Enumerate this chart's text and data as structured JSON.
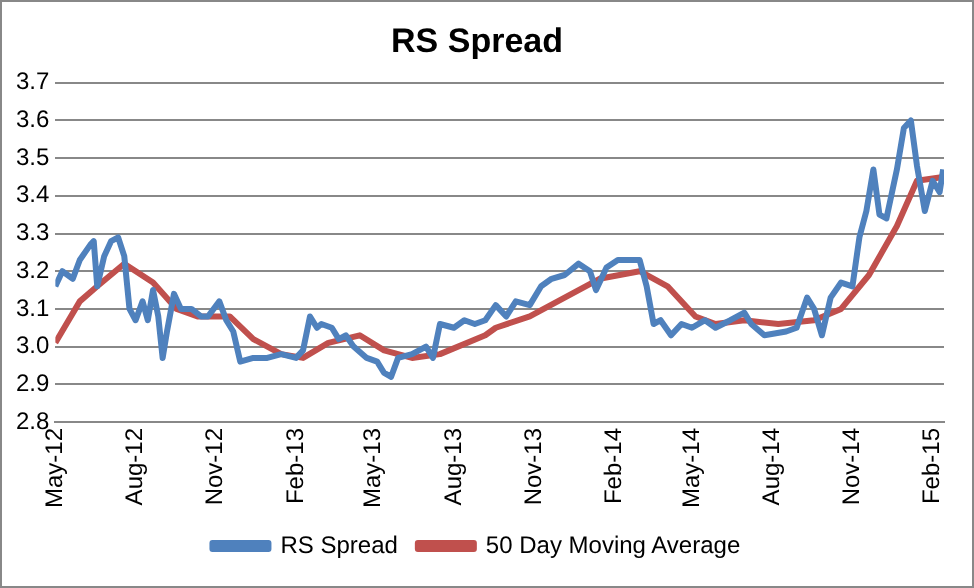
{
  "chart_data": {
    "type": "line",
    "title": "RS Spread",
    "legend": "bottom",
    "grid": "y",
    "marker": "none",
    "line_style": "solid",
    "xlim": [
      "2012-05-01",
      "2015-02-14"
    ],
    "xticks": [
      {
        "value": "2012-05-01",
        "label": "May-12"
      },
      {
        "value": "2012-08-01",
        "label": "Aug-12"
      },
      {
        "value": "2012-11-01",
        "label": "Nov-12"
      },
      {
        "value": "2013-02-01",
        "label": "Feb-13"
      },
      {
        "value": "2013-05-01",
        "label": "May-13"
      },
      {
        "value": "2013-08-01",
        "label": "Aug-13"
      },
      {
        "value": "2013-11-01",
        "label": "Nov-13"
      },
      {
        "value": "2014-02-01",
        "label": "Feb-14"
      },
      {
        "value": "2014-05-01",
        "label": "May-14"
      },
      {
        "value": "2014-08-01",
        "label": "Aug-14"
      },
      {
        "value": "2014-11-01",
        "label": "Nov-14"
      },
      {
        "value": "2015-02-01",
        "label": "Feb-15"
      }
    ],
    "ylim": [
      2.8,
      3.7
    ],
    "yticks": [
      {
        "value": 2.8,
        "label": "2.8"
      },
      {
        "value": 2.9,
        "label": "2.9"
      },
      {
        "value": 3.0,
        "label": "3.0"
      },
      {
        "value": 3.1,
        "label": "3.1"
      },
      {
        "value": 3.2,
        "label": "3.2"
      },
      {
        "value": 3.3,
        "label": "3.3"
      },
      {
        "value": 3.4,
        "label": "3.4"
      },
      {
        "value": 3.5,
        "label": "3.5"
      },
      {
        "value": 3.6,
        "label": "3.6"
      },
      {
        "value": 3.7,
        "label": "3.7"
      }
    ],
    "series": [
      {
        "name": "RS Spread",
        "color": "#4f81bd",
        "x": [
          "2012-05-01",
          "2012-05-09",
          "2012-05-21",
          "2012-05-29",
          "2012-06-10",
          "2012-06-14",
          "2012-06-18",
          "2012-06-26",
          "2012-07-04",
          "2012-07-12",
          "2012-07-19",
          "2012-07-25",
          "2012-08-01",
          "2012-08-09",
          "2012-08-15",
          "2012-08-21",
          "2012-08-27",
          "2012-09-01",
          "2012-09-06",
          "2012-09-14",
          "2012-09-22",
          "2012-10-04",
          "2012-10-15",
          "2012-10-23",
          "2012-11-05",
          "2012-11-13",
          "2012-11-21",
          "2012-11-29",
          "2012-12-14",
          "2012-12-30",
          "2013-01-15",
          "2013-02-01",
          "2013-02-09",
          "2013-02-17",
          "2013-02-25",
          "2013-03-02",
          "2013-03-14",
          "2013-03-22",
          "2013-03-30",
          "2013-04-08",
          "2013-04-23",
          "2013-05-05",
          "2013-05-13",
          "2013-05-21",
          "2013-05-29",
          "2013-06-14",
          "2013-06-30",
          "2013-07-08",
          "2013-07-16",
          "2013-08-01",
          "2013-08-13",
          "2013-08-25",
          "2013-09-06",
          "2013-09-18",
          "2013-09-30",
          "2013-10-11",
          "2013-10-27",
          "2013-11-09",
          "2013-11-21",
          "2013-12-06",
          "2013-12-22",
          "2014-01-04",
          "2014-01-11",
          "2014-01-23",
          "2014-02-05",
          "2014-02-20",
          "2014-03-02",
          "2014-03-10",
          "2014-03-18",
          "2014-03-26",
          "2014-04-07",
          "2014-04-19",
          "2014-05-01",
          "2014-05-16",
          "2014-05-28",
          "2014-06-14",
          "2014-06-30",
          "2014-07-08",
          "2014-07-23",
          "2014-08-17",
          "2014-08-29",
          "2014-09-10",
          "2014-09-18",
          "2014-09-27",
          "2014-10-07",
          "2014-10-19",
          "2014-11-01",
          "2014-11-09",
          "2014-11-17",
          "2014-11-25",
          "2014-12-02",
          "2014-12-10",
          "2014-12-22",
          "2014-12-30",
          "2015-01-07",
          "2015-01-14",
          "2015-01-23",
          "2015-02-01",
          "2015-02-09",
          "2015-02-13"
        ],
        "values": [
          3.16,
          3.2,
          3.18,
          3.23,
          3.27,
          3.28,
          3.16,
          3.24,
          3.28,
          3.29,
          3.24,
          3.1,
          3.07,
          3.12,
          3.07,
          3.15,
          3.08,
          2.97,
          3.04,
          3.14,
          3.1,
          3.1,
          3.08,
          3.08,
          3.12,
          3.07,
          3.04,
          2.96,
          2.97,
          2.97,
          2.98,
          2.97,
          2.99,
          3.08,
          3.05,
          3.06,
          3.05,
          3.02,
          3.03,
          3.0,
          2.97,
          2.96,
          2.93,
          2.92,
          2.97,
          2.98,
          3.0,
          2.97,
          3.06,
          3.05,
          3.07,
          3.06,
          3.07,
          3.11,
          3.08,
          3.12,
          3.11,
          3.16,
          3.18,
          3.19,
          3.22,
          3.2,
          3.15,
          3.21,
          3.23,
          3.23,
          3.23,
          3.16,
          3.06,
          3.07,
          3.03,
          3.06,
          3.05,
          3.07,
          3.05,
          3.07,
          3.09,
          3.06,
          3.03,
          3.04,
          3.05,
          3.13,
          3.1,
          3.03,
          3.13,
          3.17,
          3.16,
          3.29,
          3.36,
          3.47,
          3.35,
          3.34,
          3.47,
          3.58,
          3.6,
          3.48,
          3.36,
          3.44,
          3.41,
          3.47
        ]
      },
      {
        "name": "50 Day Moving Average",
        "color": "#c0504d",
        "x": [
          "2012-05-01",
          "2012-05-29",
          "2012-06-18",
          "2012-07-19",
          "2012-08-21",
          "2012-09-17",
          "2012-10-11",
          "2012-11-17",
          "2012-12-14",
          "2013-01-15",
          "2013-02-09",
          "2013-03-10",
          "2013-04-15",
          "2013-05-13",
          "2013-06-14",
          "2013-07-16",
          "2013-09-06",
          "2013-09-18",
          "2013-10-27",
          "2013-11-28",
          "2014-01-15",
          "2014-03-02",
          "2014-04-03",
          "2014-05-05",
          "2014-05-28",
          "2014-06-30",
          "2014-08-08",
          "2014-09-18",
          "2014-10-19",
          "2014-11-20",
          "2014-12-22",
          "2015-01-14",
          "2015-02-13"
        ],
        "values": [
          3.01,
          3.12,
          3.16,
          3.22,
          3.17,
          3.1,
          3.08,
          3.08,
          3.02,
          2.98,
          2.97,
          3.01,
          3.03,
          2.99,
          2.97,
          2.98,
          3.03,
          3.05,
          3.08,
          3.12,
          3.18,
          3.2,
          3.16,
          3.08,
          3.06,
          3.07,
          3.06,
          3.07,
          3.1,
          3.19,
          3.32,
          3.44,
          3.45
        ]
      }
    ]
  }
}
